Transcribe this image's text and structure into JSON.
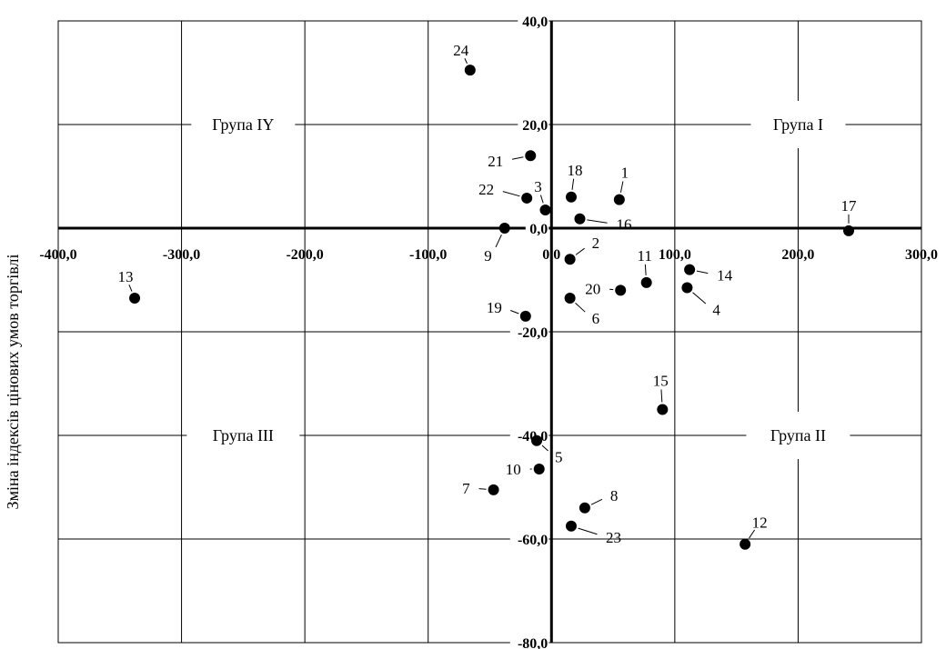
{
  "chart_data": {
    "type": "scatter",
    "title": "",
    "xlabel": "",
    "ylabel": "Зміна індексів цінових умов торгівлі",
    "xlim": [
      -400,
      300
    ],
    "ylim": [
      -80,
      40
    ],
    "x_ticks": [
      -400,
      -300,
      -200,
      -100,
      0,
      100,
      200,
      300
    ],
    "y_ticks": [
      40,
      20,
      0,
      -20,
      -40,
      -60,
      -80
    ],
    "x_tick_labels": [
      "-400,0",
      "-300,0",
      "-200,0",
      "-100,0",
      "0,0",
      "100,0",
      "200,0",
      "300,0"
    ],
    "y_tick_labels": [
      "40,0",
      "20,0",
      "0,0",
      "-20,0",
      "-40,0",
      "-60,0",
      "-80,0"
    ],
    "grid": true,
    "group_labels": [
      {
        "text": "Група I",
        "x": 200,
        "y": 20
      },
      {
        "text": "Група II",
        "x": 200,
        "y": -40
      },
      {
        "text": "Група III",
        "x": -250,
        "y": -40
      },
      {
        "text": "Група IY",
        "x": -250,
        "y": 20
      }
    ],
    "points": [
      {
        "label": "1",
        "x": 55,
        "y": 5.5
      },
      {
        "label": "2",
        "x": 15,
        "y": -6
      },
      {
        "label": "3",
        "x": -5,
        "y": 3.5
      },
      {
        "label": "4",
        "x": 110,
        "y": -11.5
      },
      {
        "label": "5",
        "x": -12,
        "y": -41
      },
      {
        "label": "6",
        "x": 15,
        "y": -13.5
      },
      {
        "label": "7",
        "x": -47,
        "y": -50.5
      },
      {
        "label": "8",
        "x": 27,
        "y": -54
      },
      {
        "label": "9",
        "x": -38,
        "y": 0
      },
      {
        "label": "10",
        "x": -10,
        "y": -46.5
      },
      {
        "label": "11",
        "x": 77,
        "y": -10.5
      },
      {
        "label": "12",
        "x": 157,
        "y": -61
      },
      {
        "label": "13",
        "x": -338,
        "y": -13.5
      },
      {
        "label": "14",
        "x": 112,
        "y": -8
      },
      {
        "label": "15",
        "x": 90,
        "y": -35
      },
      {
        "label": "16",
        "x": 23,
        "y": 1.8
      },
      {
        "label": "17",
        "x": 241,
        "y": -0.5
      },
      {
        "label": "18",
        "x": 16,
        "y": 6
      },
      {
        "label": "19",
        "x": -21,
        "y": -17
      },
      {
        "label": "20",
        "x": 56,
        "y": -12
      },
      {
        "label": "21",
        "x": -17,
        "y": 14
      },
      {
        "label": "22",
        "x": -20,
        "y": 5.8
      },
      {
        "label": "23",
        "x": 16,
        "y": -57.5
      },
      {
        "label": "24",
        "x": -66,
        "y": 30.5
      }
    ]
  }
}
